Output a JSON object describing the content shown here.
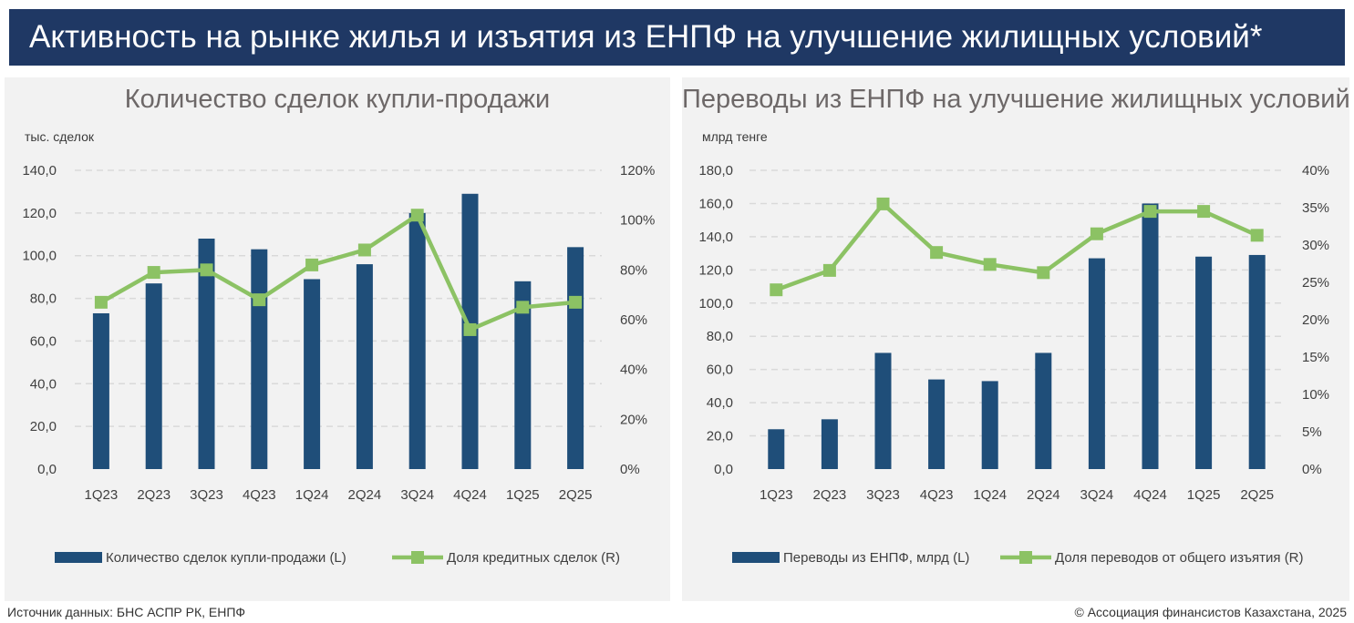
{
  "header": {
    "title": "Активность на рынке жилья и изъятия из ЕНПФ на улучшение жилищных условий*"
  },
  "footer": {
    "source": "Источник данных: БНС АСПР РК, ЕНПФ",
    "copyright": "© Ассоциация финансистов Казахстана, 2025"
  },
  "colors": {
    "bar": "#1f4e79",
    "line": "#8cc264",
    "header": "#1f3864",
    "panel": "#f2f2f2"
  },
  "chart_data": [
    {
      "type": "bar+line",
      "title": "Количество сделок купли-продажи",
      "ylabel": "тыс. сделок",
      "categories": [
        "1Q23",
        "2Q23",
        "3Q23",
        "4Q23",
        "1Q24",
        "2Q24",
        "3Q24",
        "4Q24",
        "1Q25",
        "2Q25"
      ],
      "ylim": [
        0,
        140
      ],
      "yticks": [
        "0,0",
        "20,0",
        "40,0",
        "60,0",
        "80,0",
        "100,0",
        "120,0",
        "140,0"
      ],
      "y2lim": [
        0,
        120
      ],
      "y2ticks": [
        "0%",
        "20%",
        "40%",
        "60%",
        "80%",
        "100%",
        "120%"
      ],
      "series": [
        {
          "name": "Количество сделок купли-продажи (L)",
          "type": "bar",
          "axis": "left",
          "values": [
            73,
            87,
            108,
            103,
            89,
            96,
            120,
            129,
            88,
            104
          ]
        },
        {
          "name": "Доля кредитных сделок (R)",
          "type": "line",
          "axis": "right",
          "values": [
            67,
            79,
            80,
            68,
            82,
            88,
            102,
            56,
            65,
            67
          ]
        }
      ],
      "grid": true,
      "legend": "bottom"
    },
    {
      "type": "bar+line",
      "title": "Переводы из ЕНПФ на улучшение жилищных условий",
      "ylabel": "млрд тенге",
      "categories": [
        "1Q23",
        "2Q23",
        "3Q23",
        "4Q23",
        "1Q24",
        "2Q24",
        "3Q24",
        "4Q24",
        "1Q25",
        "2Q25"
      ],
      "ylim": [
        0,
        180
      ],
      "yticks": [
        "0,0",
        "20,0",
        "40,0",
        "60,0",
        "80,0",
        "100,0",
        "120,0",
        "140,0",
        "160,0",
        "180,0"
      ],
      "y2lim": [
        0,
        40
      ],
      "y2ticks": [
        "0%",
        "5%",
        "10%",
        "15%",
        "20%",
        "25%",
        "30%",
        "35%",
        "40%"
      ],
      "series": [
        {
          "name": "Переводы из ЕНПФ, млрд (L)",
          "type": "bar",
          "axis": "left",
          "values": [
            24,
            30,
            70,
            54,
            53,
            70,
            127,
            160,
            128,
            129
          ]
        },
        {
          "name": "Доля переводов от общего изъятия (R)",
          "type": "line",
          "axis": "right",
          "values": [
            24,
            26.6,
            35.5,
            29,
            27.4,
            26.3,
            31.5,
            34.5,
            34.5,
            31.3
          ]
        }
      ],
      "grid": true,
      "legend": "bottom"
    }
  ]
}
